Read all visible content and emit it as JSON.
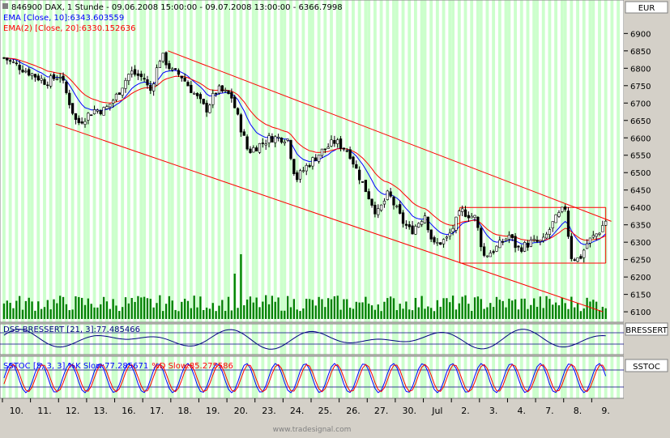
{
  "chart_data": {
    "type": "candlestick",
    "title": "846900  DAX, 1 Stunde - 09.06.2008 15:00:00 - 09.07.2008 13:00:00 - 6366.7998",
    "currency": "EUR",
    "watermark": "www.tradesignal.com",
    "legend": [
      {
        "label": "EMA [Close, 10]:6343.603559",
        "color": "#0000ff"
      },
      {
        "label": "EMA(2) [Close, 20]:6330.152636",
        "color": "#ff0000"
      }
    ],
    "price_axis": {
      "ticks": [
        6900,
        6850,
        6800,
        6750,
        6700,
        6650,
        6600,
        6550,
        6500,
        6450,
        6400,
        6350,
        6300,
        6250,
        6200,
        6150,
        6100
      ],
      "range": [
        6070,
        6945
      ]
    },
    "x_ticks": [
      "10.",
      "11.",
      "12.",
      "13.",
      "16.",
      "17.",
      "18.",
      "19.",
      "20.",
      "23.",
      "24.",
      "25.",
      "26.",
      "27.",
      "30.",
      "Jul",
      "2.",
      "3.",
      "4.",
      "7.",
      "8.",
      "9."
    ],
    "anchors": [
      [
        0,
        6830
      ],
      [
        1.5,
        6760
      ],
      [
        2,
        6780
      ],
      [
        2.6,
        6640
      ],
      [
        3.2,
        6680
      ],
      [
        3.6,
        6680
      ],
      [
        4,
        6720
      ],
      [
        4.5,
        6790
      ],
      [
        5,
        6770
      ],
      [
        5.2,
        6730
      ],
      [
        5.6,
        6840
      ],
      [
        6,
        6790
      ],
      [
        6.3,
        6780
      ],
      [
        7.2,
        6680
      ],
      [
        7.6,
        6740
      ],
      [
        8.1,
        6720
      ],
      [
        8.7,
        6560
      ],
      [
        9.5,
        6600
      ],
      [
        10.1,
        6600
      ],
      [
        10.4,
        6480
      ],
      [
        10.8,
        6520
      ],
      [
        11.3,
        6560
      ],
      [
        11.8,
        6590
      ],
      [
        12.3,
        6560
      ],
      [
        12.6,
        6500
      ],
      [
        13.3,
        6380
      ],
      [
        13.7,
        6440
      ],
      [
        14.2,
        6360
      ],
      [
        14.5,
        6330
      ],
      [
        15,
        6380
      ],
      [
        15.3,
        6290
      ],
      [
        15.8,
        6310
      ],
      [
        16.3,
        6390
      ],
      [
        16.8,
        6370
      ],
      [
        17.1,
        6260
      ],
      [
        17.5,
        6280
      ],
      [
        18,
        6320
      ],
      [
        18.3,
        6280
      ],
      [
        18.8,
        6300
      ],
      [
        19.2,
        6300
      ],
      [
        19.6,
        6360
      ],
      [
        20,
        6400
      ],
      [
        20.2,
        6260
      ],
      [
        20.5,
        6250
      ],
      [
        20.8,
        6300
      ],
      [
        21.2,
        6330
      ],
      [
        21.5,
        6370
      ]
    ],
    "channel": {
      "upper": [
        {
          "x": 5.9,
          "y": 6850
        },
        {
          "x": 21.7,
          "y": 6360
        }
      ],
      "lower": [
        {
          "x": 1.9,
          "y": 6640
        },
        {
          "x": 21.4,
          "y": 6100
        }
      ]
    },
    "range_box": {
      "x_start": 16.3,
      "x_end": 21.5,
      "top": 6400,
      "bottom": 6240
    },
    "volume_spikes": [
      {
        "x": 8.4,
        "v": 1.0
      },
      {
        "x": 8.2,
        "v": 0.7
      }
    ],
    "indicators": [
      {
        "name": "DSS-BRESSERT",
        "label": "DSS-BRESSERT [21, 3]:77.485466",
        "tag": "BRESSERT",
        "color": "#000080"
      },
      {
        "name": "SSTOC",
        "label": "SSTOC [5, 3, 3] %K Slow:77.285671  %D Slow:85.275586",
        "k_label": "SSTOC [5, 3, 3] %K Slow:77.285671",
        "d_label": "%D Slow:85.275586",
        "tag": "SSTOC",
        "k_color": "#0000ff",
        "d_color": "#ff0000"
      }
    ]
  }
}
